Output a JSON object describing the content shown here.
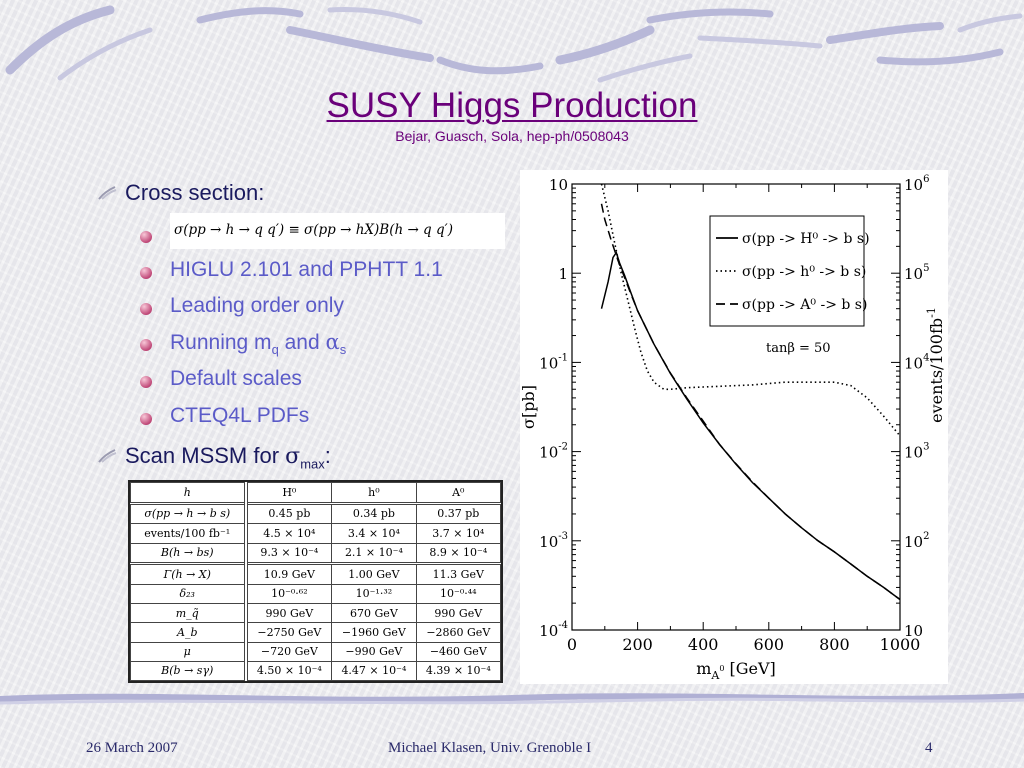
{
  "slide": {
    "title": "SUSY Higgs Production",
    "subtitle": "Bejar, Guasch, Sola, hep-ph/0508043",
    "bullets": {
      "cross_section": "Cross section:",
      "formula": "σ(pp → h → q q′) ≡ σ(pp → hX)B(h → q q′)",
      "sub_items": [
        "HIGLU 2.101 and PPHTT 1.1",
        "Leading order only"
      ],
      "running_prefix": "Running m",
      "running_q": "q",
      "running_and": " and ",
      "running_alpha": "α",
      "running_s": "s",
      "sub_items_2": [
        "Default scales",
        "CTEQ4L PDFs"
      ],
      "scan_prefix": "Scan MSSM for ",
      "scan_sigma": "σ",
      "scan_max": "max",
      "scan_colon": ":"
    },
    "footer": {
      "date": "26 March 2007",
      "author": "Michael Klasen, Univ. Grenoble I",
      "page": "4"
    }
  },
  "table": {
    "headers": [
      "h",
      "H⁰",
      "h⁰",
      "A⁰"
    ],
    "rows": [
      {
        "label": "σ(pp → h → b s)",
        "values": [
          "0.45 pb",
          "0.34 pb",
          "0.37 pb"
        ]
      },
      {
        "label": "events/100 fb⁻¹",
        "values": [
          "4.5 × 10⁴",
          "3.4 × 10⁴",
          "3.7 × 10⁴"
        ]
      },
      {
        "label": "B(h → bs)",
        "values": [
          "9.3 × 10⁻⁴",
          "2.1 × 10⁻⁴",
          "8.9 × 10⁻⁴"
        ]
      },
      {
        "label": "Γ(h → X)",
        "values": [
          "10.9 GeV",
          "1.00 GeV",
          "11.3 GeV"
        ]
      },
      {
        "label": "δ₂₃",
        "values": [
          "10⁻⁰·⁶²",
          "10⁻¹·³²",
          "10⁻⁰·⁴⁴"
        ]
      },
      {
        "label": "m_q̃",
        "values": [
          "990 GeV",
          "670 GeV",
          "990 GeV"
        ]
      },
      {
        "label": "A_b",
        "values": [
          "−2750 GeV",
          "−1960 GeV",
          "−2860 GeV"
        ]
      },
      {
        "label": "μ",
        "values": [
          "−720 GeV",
          "−990 GeV",
          "−460 GeV"
        ]
      },
      {
        "label": "B(b → sγ)",
        "values": [
          "4.50 × 10⁻⁴",
          "4.47 × 10⁻⁴",
          "4.39 × 10⁻⁴"
        ]
      }
    ]
  },
  "chart_data": {
    "type": "line",
    "xlabel": "m",
    "xlabel_sub": "A",
    "xlabel_sup": "0",
    "xlabel_unit": " [GeV]",
    "ylabel": "σ[pb]",
    "ylabel_right": "events/100fb",
    "ylabel_right_sup": "-1",
    "xlim": [
      0,
      1000
    ],
    "ylim": [
      0.0001,
      10
    ],
    "ylog": true,
    "x_ticks": [
      "0",
      "200",
      "400",
      "600",
      "800",
      "1000"
    ],
    "y_ticks_left": [
      {
        "base": "10",
        "exp": "",
        "value": 10
      },
      {
        "base": "1",
        "exp": "",
        "value": 1
      },
      {
        "base": "10",
        "exp": "-1",
        "value": 0.1
      },
      {
        "base": "10",
        "exp": "-2",
        "value": 0.01
      },
      {
        "base": "10",
        "exp": "-3",
        "value": 0.001
      },
      {
        "base": "10",
        "exp": "-4",
        "value": 0.0001
      }
    ],
    "y_ticks_right": [
      {
        "base": "10",
        "exp": "6"
      },
      {
        "base": "10",
        "exp": "5"
      },
      {
        "base": "10",
        "exp": "4"
      },
      {
        "base": "10",
        "exp": "3"
      },
      {
        "base": "10",
        "exp": "2"
      },
      {
        "base": "10",
        "exp": ""
      }
    ],
    "annotation": "tanβ = 50",
    "legend_position": "top-right",
    "series": [
      {
        "name": "σ(pp -> H⁰ -> b s)",
        "style": "solid",
        "x": [
          90,
          110,
          125,
          135,
          145,
          160,
          180,
          200,
          250,
          300,
          350,
          400,
          450,
          500,
          550,
          600,
          650,
          700,
          750,
          800,
          850,
          900,
          950,
          1000
        ],
        "y": [
          0.4,
          0.8,
          1.5,
          1.7,
          1.3,
          0.95,
          0.6,
          0.38,
          0.16,
          0.075,
          0.039,
          0.021,
          0.012,
          0.0072,
          0.0045,
          0.003,
          0.002,
          0.0014,
          0.001,
          0.00075,
          0.00055,
          0.0004,
          0.0003,
          0.00022
        ]
      },
      {
        "name": "σ(pp -> h⁰ -> b s)",
        "style": "dotted",
        "x": [
          90,
          110,
          130,
          150,
          170,
          190,
          210,
          230,
          250,
          280,
          300,
          350,
          400,
          450,
          500,
          550,
          600,
          650,
          700,
          750,
          800,
          850,
          900,
          950,
          1000
        ],
        "y": [
          10,
          5,
          2.2,
          1.0,
          0.5,
          0.25,
          0.13,
          0.08,
          0.06,
          0.05,
          0.05,
          0.052,
          0.053,
          0.054,
          0.055,
          0.056,
          0.058,
          0.06,
          0.06,
          0.06,
          0.06,
          0.055,
          0.04,
          0.025,
          0.015
        ]
      },
      {
        "name": "σ(pp -> A⁰ -> b s)",
        "style": "dashed",
        "x": [
          90,
          100,
          120,
          140,
          160,
          180,
          200,
          250,
          300,
          350,
          400,
          450,
          500,
          550,
          600,
          650,
          700,
          750,
          800,
          850,
          900,
          950,
          1000
        ],
        "y": [
          6,
          4,
          2.3,
          1.4,
          0.9,
          0.58,
          0.38,
          0.16,
          0.076,
          0.04,
          0.022,
          0.012,
          0.0073,
          0.0046,
          0.003,
          0.002,
          0.0014,
          0.001,
          0.00075,
          0.00055,
          0.0004,
          0.0003,
          0.00022
        ]
      }
    ]
  }
}
